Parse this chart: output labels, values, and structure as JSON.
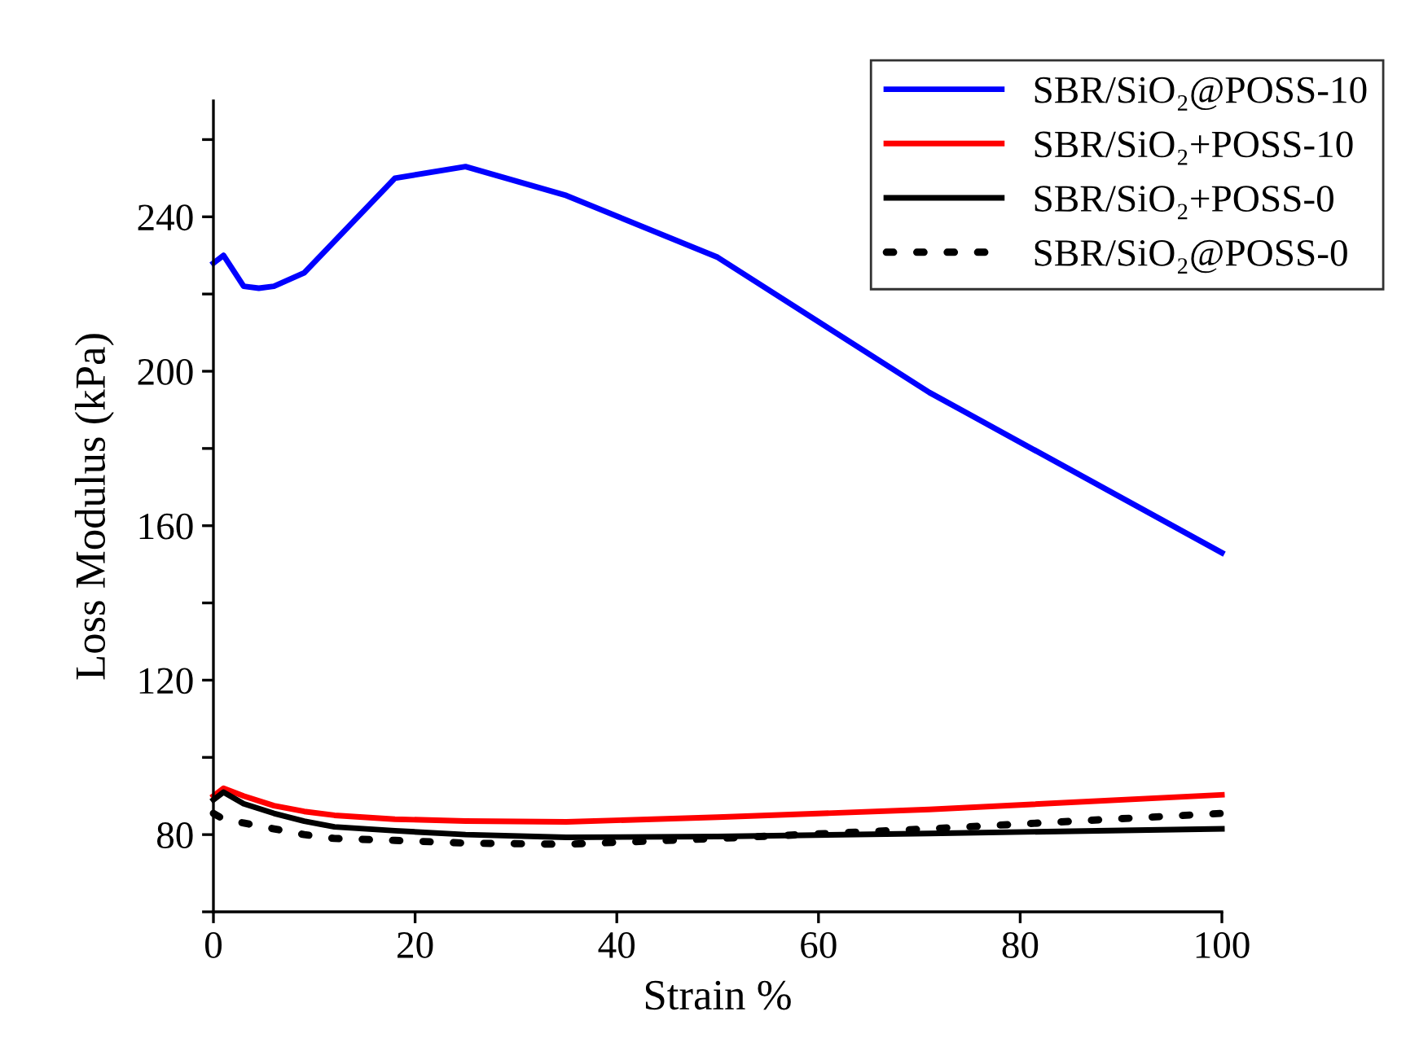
{
  "chart_data": {
    "type": "line",
    "xlabel": "Strain %",
    "ylabel": "Loss Modulus (kPa)",
    "xlim": [
      0,
      100
    ],
    "xticks": [
      0,
      20,
      40,
      60,
      80,
      100
    ],
    "ylim": [
      60,
      270
    ],
    "yticks": [
      {
        "value": 60,
        "label": null
      },
      80,
      {
        "value": 100,
        "label": null
      },
      120,
      {
        "value": 140,
        "label": null
      },
      160,
      {
        "value": 180,
        "label": null
      },
      200,
      {
        "value": 220,
        "label": null
      },
      240,
      {
        "value": 260,
        "label": null
      }
    ],
    "grid": false,
    "legend": "top right",
    "marker": "none",
    "series": [
      {
        "name": "SBR/SiO₂@POSS-10",
        "color": "#0000ff",
        "line_style": "solid",
        "x": [
          0,
          1,
          3,
          4.5,
          6,
          9,
          18,
          25,
          35,
          50,
          71,
          100
        ],
        "values": [
          228,
          230,
          222,
          221.5,
          222,
          225.5,
          250,
          253,
          245.5,
          229.5,
          194.5,
          153
        ]
      },
      {
        "name": "SBR/SiO₂+POSS-10",
        "color": "#ff0000",
        "line_style": "solid",
        "x": [
          0,
          1,
          3,
          6,
          9,
          12,
          18,
          25,
          35,
          50,
          71,
          100
        ],
        "values": [
          90,
          92,
          90,
          87.5,
          86,
          85,
          84,
          83.5,
          83.3,
          84.5,
          86.5,
          90.3
        ]
      },
      {
        "name": "SBR/SiO₂+POSS-0",
        "color": "#000000",
        "line_style": "solid",
        "x": [
          0,
          1,
          3,
          6,
          9,
          12,
          18,
          25,
          35,
          50,
          71,
          100
        ],
        "values": [
          89,
          91,
          88,
          85.5,
          83.5,
          82,
          81,
          80,
          79.3,
          79.5,
          80.3,
          81.5
        ]
      },
      {
        "name": "SBR/SiO₂@POSS-0",
        "color": "#000000",
        "line_style": "dotted",
        "x": [
          0,
          1,
          3,
          6,
          9,
          12,
          18,
          25,
          35,
          50,
          71,
          100
        ],
        "values": [
          85.5,
          84,
          83,
          81.5,
          80,
          79,
          78.5,
          77.8,
          77.5,
          79,
          81.5,
          85.5
        ]
      }
    ]
  }
}
